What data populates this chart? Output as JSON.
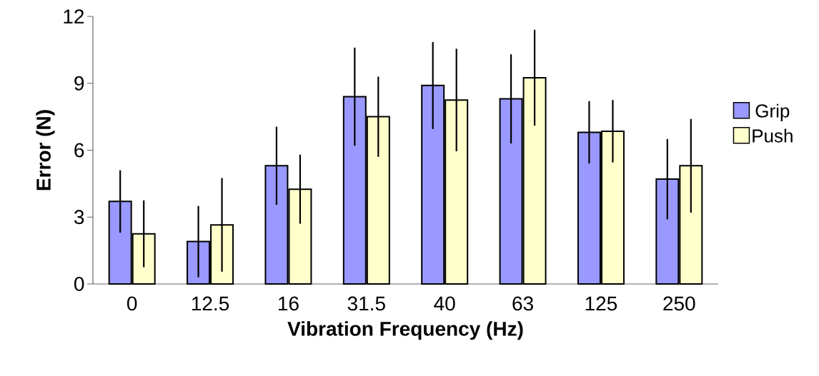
{
  "chart_data": {
    "type": "bar",
    "xlabel": "Vibration Frequency (Hz)",
    "ylabel": "Error (N)",
    "categories": [
      "0",
      "12.5",
      "16",
      "31.5",
      "40",
      "63",
      "125",
      "250"
    ],
    "series": [
      {
        "name": "Grip",
        "color": "#9999ff",
        "values": [
          3.7,
          1.9,
          5.3,
          8.4,
          8.9,
          8.3,
          6.8,
          4.7
        ],
        "errors": [
          1.4,
          1.6,
          1.75,
          2.2,
          1.95,
          2.0,
          1.4,
          1.8
        ]
      },
      {
        "name": "Push",
        "color": "#ffffcc",
        "values": [
          2.25,
          2.65,
          4.25,
          7.5,
          8.25,
          9.25,
          6.85,
          5.3
        ],
        "errors": [
          1.5,
          2.1,
          1.55,
          1.8,
          2.3,
          2.15,
          1.4,
          2.1
        ]
      }
    ],
    "ylim": [
      0,
      12
    ],
    "yticks": [
      0,
      3,
      6,
      9,
      12
    ],
    "grid": false,
    "legend": "right"
  }
}
